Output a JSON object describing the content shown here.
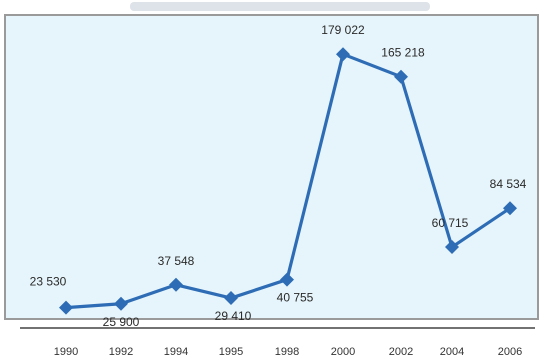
{
  "chart_data": {
    "type": "line",
    "categories": [
      "1990",
      "1992",
      "1994",
      "1995",
      "1998",
      "2000",
      "2002",
      "2004",
      "2006"
    ],
    "values": [
      23530,
      25900,
      37548,
      29410,
      40755,
      179022,
      165218,
      60715,
      84534
    ],
    "data_labels": [
      "23 530",
      "25 900",
      "37 548",
      "29 410",
      "40 755",
      "179 022",
      "165 218",
      "60 715",
      "84 534"
    ],
    "ylim": [
      0,
      200000
    ],
    "grid": false,
    "line_color": "#2e6db5",
    "background_color": "#e6f5fb"
  }
}
